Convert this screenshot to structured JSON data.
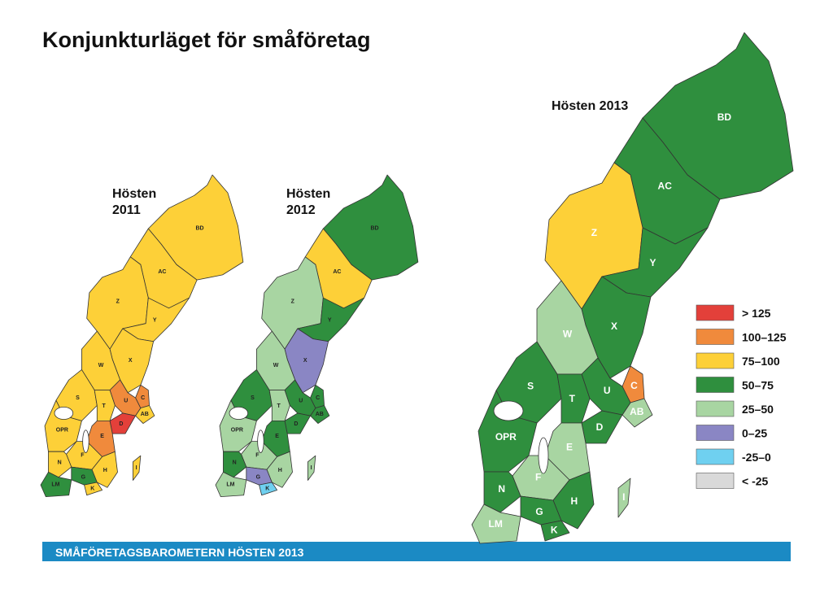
{
  "header": {
    "title": "Konjunkturläget för småföretag"
  },
  "maps": [
    {
      "label": [
        "Hösten",
        "2011"
      ],
      "regions": [
        {
          "code": "BD",
          "color": "#fdd038"
        },
        {
          "code": "AC",
          "color": "#fdd038"
        },
        {
          "code": "Z",
          "color": "#fdd038"
        },
        {
          "code": "Y",
          "color": "#fdd038"
        },
        {
          "code": "X",
          "color": "#fdd038"
        },
        {
          "code": "W",
          "color": "#fdd038"
        },
        {
          "code": "C",
          "color": "#f08a3c"
        },
        {
          "code": "AB",
          "color": "#fdd038"
        },
        {
          "code": "U",
          "color": "#f08a3c"
        },
        {
          "code": "S",
          "color": "#fdd038"
        },
        {
          "code": "T",
          "color": "#fdd038"
        },
        {
          "code": "D",
          "color": "#e3403a"
        },
        {
          "code": "OPR",
          "color": "#fdd038"
        },
        {
          "code": "E",
          "color": "#f08a3c"
        },
        {
          "code": "F",
          "color": "#fdd038"
        },
        {
          "code": "H",
          "color": "#fdd038"
        },
        {
          "code": "N",
          "color": "#fdd038"
        },
        {
          "code": "G",
          "color": "#2f8f3e"
        },
        {
          "code": "K",
          "color": "#fdd038"
        },
        {
          "code": "LM",
          "color": "#2f8f3e"
        },
        {
          "code": "I",
          "color": "#fdd038"
        }
      ]
    },
    {
      "label": [
        "Hösten",
        "2012"
      ],
      "regions": [
        {
          "code": "BD",
          "color": "#2f8f3e"
        },
        {
          "code": "AC",
          "color": "#fdd038"
        },
        {
          "code": "Z",
          "color": "#a8d5a2"
        },
        {
          "code": "Y",
          "color": "#2f8f3e"
        },
        {
          "code": "X",
          "color": "#8a86c4"
        },
        {
          "code": "W",
          "color": "#a8d5a2"
        },
        {
          "code": "C",
          "color": "#2f8f3e"
        },
        {
          "code": "AB",
          "color": "#2f8f3e"
        },
        {
          "code": "U",
          "color": "#2f8f3e"
        },
        {
          "code": "S",
          "color": "#2f8f3e"
        },
        {
          "code": "T",
          "color": "#a8d5a2"
        },
        {
          "code": "D",
          "color": "#2f8f3e"
        },
        {
          "code": "OPR",
          "color": "#a8d5a2"
        },
        {
          "code": "E",
          "color": "#2f8f3e"
        },
        {
          "code": "F",
          "color": "#a8d5a2"
        },
        {
          "code": "H",
          "color": "#a8d5a2"
        },
        {
          "code": "N",
          "color": "#2f8f3e"
        },
        {
          "code": "G",
          "color": "#8a86c4"
        },
        {
          "code": "K",
          "color": "#6fd0f0"
        },
        {
          "code": "LM",
          "color": "#a8d5a2"
        },
        {
          "code": "I",
          "color": "#a8d5a2"
        }
      ]
    },
    {
      "label": [
        "Hösten 2013"
      ],
      "regions": [
        {
          "code": "BD",
          "color": "#2f8f3e"
        },
        {
          "code": "AC",
          "color": "#2f8f3e"
        },
        {
          "code": "Z",
          "color": "#fdd038"
        },
        {
          "code": "Y",
          "color": "#2f8f3e"
        },
        {
          "code": "X",
          "color": "#2f8f3e"
        },
        {
          "code": "W",
          "color": "#a8d5a2"
        },
        {
          "code": "C",
          "color": "#f08a3c"
        },
        {
          "code": "AB",
          "color": "#a8d5a2"
        },
        {
          "code": "U",
          "color": "#2f8f3e"
        },
        {
          "code": "S",
          "color": "#2f8f3e"
        },
        {
          "code": "T",
          "color": "#2f8f3e"
        },
        {
          "code": "D",
          "color": "#2f8f3e"
        },
        {
          "code": "OPR",
          "color": "#2f8f3e"
        },
        {
          "code": "E",
          "color": "#a8d5a2"
        },
        {
          "code": "F",
          "color": "#a8d5a2"
        },
        {
          "code": "H",
          "color": "#2f8f3e"
        },
        {
          "code": "N",
          "color": "#2f8f3e"
        },
        {
          "code": "G",
          "color": "#2f8f3e"
        },
        {
          "code": "K",
          "color": "#2f8f3e"
        },
        {
          "code": "LM",
          "color": "#a8d5a2"
        },
        {
          "code": "I",
          "color": "#a8d5a2"
        }
      ]
    }
  ],
  "legend": [
    {
      "label": "> 125",
      "color": "#e3403a"
    },
    {
      "label": "100–125",
      "color": "#f08a3c"
    },
    {
      "label": "75–100",
      "color": "#fdd038"
    },
    {
      "label": "50–75",
      "color": "#2f8f3e"
    },
    {
      "label": "25–50",
      "color": "#a8d5a2"
    },
    {
      "label": "0–25",
      "color": "#8a86c4"
    },
    {
      "label": "-25–0",
      "color": "#6fd0f0"
    },
    {
      "label": "< -25",
      "color": "#d9d9d9"
    }
  ],
  "footer": {
    "text": "SMÅFÖRETAGSBAROMETERN HÖSTEN 2013"
  }
}
